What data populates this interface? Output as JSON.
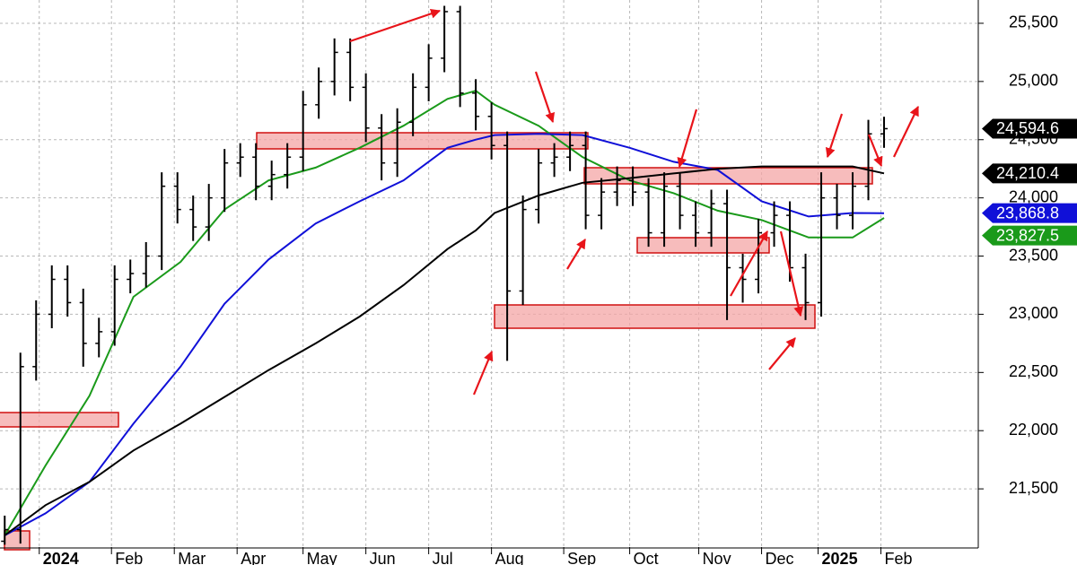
{
  "chart_data": {
    "type": "ohlc",
    "color": "#000000",
    "xlim": [
      -1.5,
      310
    ],
    "ylim": [
      21000,
      25700
    ],
    "grid": true,
    "yticks": [
      {
        "value": 21500,
        "label": "21,500"
      },
      {
        "value": 22000,
        "label": "22,000"
      },
      {
        "value": 22500,
        "label": "22,500"
      },
      {
        "value": 23000,
        "label": "23,000"
      },
      {
        "value": 23500,
        "label": "23,500"
      },
      {
        "value": 24000,
        "label": "24,000"
      },
      {
        "value": 24500,
        "label": "24,500"
      },
      {
        "value": 25000,
        "label": "25,000"
      },
      {
        "value": 25500,
        "label": "25,500"
      }
    ],
    "xticks": [
      {
        "value": 11,
        "label": "2024"
      },
      {
        "value": 34,
        "label": "Feb"
      },
      {
        "value": 54,
        "label": "Mar"
      },
      {
        "value": 74,
        "label": "Apr"
      },
      {
        "value": 95,
        "label": "May"
      },
      {
        "value": 115,
        "label": "Jun"
      },
      {
        "value": 135,
        "label": "Jul"
      },
      {
        "value": 155,
        "label": "Aug"
      },
      {
        "value": 178,
        "label": "Sep"
      },
      {
        "value": 199,
        "label": "Oct"
      },
      {
        "value": 221,
        "label": "Nov"
      },
      {
        "value": 241,
        "label": "Dec"
      },
      {
        "value": 259,
        "label": "2025"
      },
      {
        "value": 279,
        "label": "Feb"
      }
    ],
    "x": [
      0,
      5,
      10,
      15,
      20,
      25,
      30,
      35,
      40,
      45,
      50,
      55,
      60,
      65,
      70,
      75,
      80,
      85,
      90,
      95,
      100,
      105,
      110,
      115,
      120,
      125,
      130,
      135,
      140,
      145,
      150,
      155,
      160,
      165,
      170,
      175,
      180,
      185,
      190,
      195,
      200,
      205,
      210,
      215,
      220,
      225,
      230,
      235,
      240,
      245,
      250,
      255,
      260,
      265,
      270,
      275,
      280
    ],
    "open": [
      21050,
      21150,
      22550,
      23000,
      23300,
      23100,
      22750,
      22850,
      23300,
      23350,
      23500,
      24100,
      23900,
      23750,
      24000,
      24300,
      24350,
      24100,
      24200,
      24350,
      24800,
      25000,
      25250,
      24950,
      24600,
      24300,
      24650,
      24950,
      25200,
      25600,
      24900,
      24700,
      24450,
      23200,
      23900,
      24300,
      24350,
      24450,
      23850,
      24050,
      24150,
      24050,
      23700,
      24100,
      23850,
      23700,
      23950,
      23400,
      23300,
      23700,
      23850,
      23400,
      23100,
      24000,
      23850,
      24100,
      24550
    ],
    "high": [
      21270,
      22670,
      23120,
      23420,
      23420,
      23220,
      22970,
      23420,
      23470,
      23620,
      24220,
      24220,
      24020,
      24120,
      24420,
      24470,
      24470,
      24320,
      24470,
      24920,
      25120,
      25370,
      25370,
      25070,
      24720,
      24770,
      25070,
      25320,
      25650,
      25650,
      25020,
      24820,
      24570,
      24020,
      24420,
      24470,
      24570,
      24570,
      24170,
      24270,
      24270,
      24170,
      24220,
      24220,
      23970,
      24070,
      24070,
      23520,
      23820,
      23970,
      23970,
      23520,
      24220,
      24120,
      24220,
      24670,
      24697
    ],
    "low": [
      21020,
      21030,
      22430,
      22880,
      22980,
      22550,
      22630,
      22730,
      23180,
      23230,
      23380,
      23780,
      23630,
      23630,
      23880,
      24180,
      23980,
      23980,
      24080,
      24230,
      24680,
      24880,
      24830,
      24480,
      24150,
      24180,
      24530,
      24830,
      25080,
      24780,
      24580,
      24330,
      22600,
      23080,
      23780,
      24180,
      24230,
      23730,
      23730,
      23930,
      23930,
      23580,
      23580,
      23730,
      23580,
      23580,
      22950,
      23100,
      23180,
      23580,
      23280,
      22950,
      22980,
      23730,
      23730,
      23980,
      24430
    ],
    "close": [
      21150,
      22550,
      23000,
      23300,
      23100,
      22750,
      22850,
      23300,
      23350,
      23500,
      24100,
      23900,
      23750,
      24000,
      24300,
      24350,
      24100,
      24200,
      24350,
      24800,
      25000,
      25250,
      24950,
      24600,
      24300,
      24650,
      24950,
      25200,
      25600,
      24900,
      24700,
      24450,
      23200,
      23900,
      24300,
      24350,
      24450,
      23850,
      24050,
      24150,
      24050,
      23700,
      24100,
      23850,
      23700,
      23950,
      23400,
      23300,
      23700,
      23850,
      23400,
      23100,
      24000,
      23850,
      24100,
      24550,
      24594.6
    ],
    "last_label": "24,594.6",
    "line_x": [
      0,
      13,
      27,
      41,
      56,
      70,
      84,
      99,
      113,
      127,
      141,
      150,
      156,
      170,
      184,
      199,
      213,
      227,
      241,
      256,
      270,
      280
    ],
    "lines": [
      {
        "color": "#1a9a1a",
        "values": [
          21100,
          21700,
          22300,
          23150,
          23450,
          23900,
          24150,
          24260,
          24430,
          24620,
          24850,
          24920,
          24800,
          24620,
          24350,
          24150,
          24040,
          23890,
          23810,
          23660,
          23660,
          23827.5
        ],
        "last_label": "23,827.5"
      },
      {
        "color": "#1010d8",
        "values": [
          21100,
          21290,
          21560,
          22060,
          22550,
          23090,
          23470,
          23780,
          23970,
          24150,
          24430,
          24500,
          24540,
          24550,
          24540,
          24430,
          24310,
          24240,
          23970,
          23840,
          23870,
          23868.8
        ],
        "last_label": "23,868.8"
      },
      {
        "color": "#000000",
        "values": [
          21100,
          21360,
          21560,
          21830,
          22060,
          22290,
          22520,
          22750,
          22980,
          23250,
          23560,
          23720,
          23870,
          24020,
          24130,
          24170,
          24210,
          24250,
          24270,
          24270,
          24270,
          24210.4
        ],
        "last_label": "24,210.4"
      }
    ]
  }
}
